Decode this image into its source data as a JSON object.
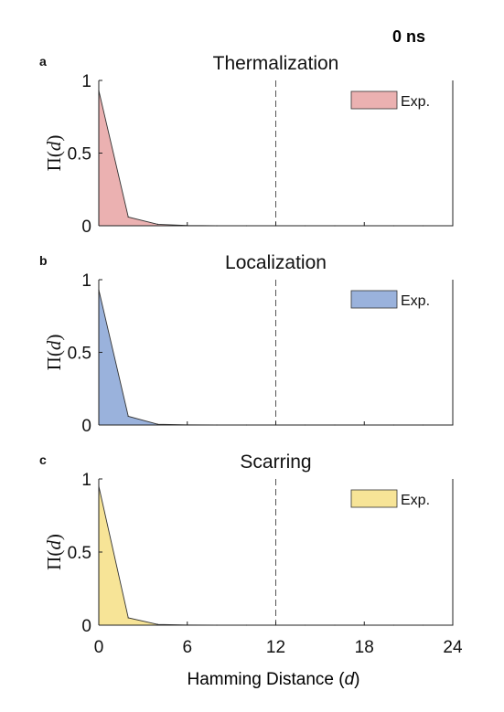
{
  "time_label": "0 ns",
  "xlabel_prefix": "Hamming Distance (",
  "xlabel_var": "d",
  "xlabel_suffix": ")",
  "ylabel_prefix": "Π(",
  "ylabel_var": "d",
  "ylabel_suffix": ")",
  "x_ticks": [
    "0",
    "6",
    "12",
    "18",
    "24"
  ],
  "y_ticks": [
    "0",
    "0.5",
    "1"
  ],
  "chart_data": [
    {
      "type": "area",
      "panel": "a",
      "title": "Thermalization",
      "legend": "Exp.",
      "legend_position": "top-right",
      "color": "#ebb1b1",
      "x": [
        0,
        2,
        4,
        6,
        8,
        10,
        12,
        14,
        16,
        18,
        20,
        22,
        24
      ],
      "values": [
        0.93,
        0.06,
        0.01,
        0.002,
        0,
        0,
        0,
        0,
        0,
        0,
        0,
        0,
        0
      ],
      "xlim": [
        0,
        24
      ],
      "ylim": [
        0,
        1
      ],
      "dashed_line_x": 12,
      "grid": false
    },
    {
      "type": "area",
      "panel": "b",
      "title": "Localization",
      "legend": "Exp.",
      "legend_position": "top-right",
      "color": "#9ab2dc",
      "x": [
        0,
        2,
        4,
        6,
        8,
        10,
        12,
        14,
        16,
        18,
        20,
        22,
        24
      ],
      "values": [
        0.93,
        0.06,
        0.005,
        0.001,
        0,
        0,
        0,
        0,
        0,
        0,
        0,
        0,
        0
      ],
      "xlim": [
        0,
        24
      ],
      "ylim": [
        0,
        1
      ],
      "dashed_line_x": 12,
      "grid": false
    },
    {
      "type": "area",
      "panel": "c",
      "title": "Scarring",
      "legend": "Exp.",
      "legend_position": "top-right",
      "color": "#f7e497",
      "x": [
        0,
        2,
        4,
        6,
        8,
        10,
        12,
        14,
        16,
        18,
        20,
        22,
        24
      ],
      "values": [
        0.95,
        0.05,
        0.005,
        0.001,
        0,
        0,
        0,
        0,
        0,
        0,
        0,
        0,
        0
      ],
      "xlim": [
        0,
        24
      ],
      "ylim": [
        0,
        1
      ],
      "dashed_line_x": 12,
      "grid": false
    }
  ]
}
